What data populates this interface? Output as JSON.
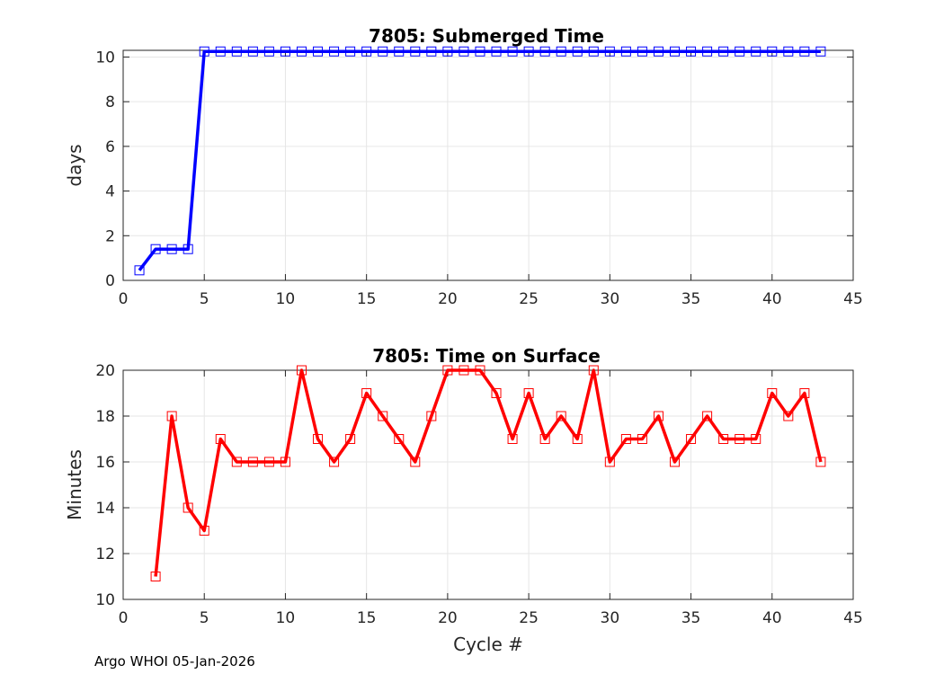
{
  "footer": {
    "text": "Argo WHOI 05-Jan-2026"
  },
  "chart_data": [
    {
      "type": "line",
      "title": "7805: Submerged Time",
      "xlabel": "",
      "ylabel": "days",
      "xlim": [
        0,
        45
      ],
      "ylim": [
        0,
        10.3
      ],
      "xticks": [
        0,
        5,
        10,
        15,
        20,
        25,
        30,
        35,
        40,
        45
      ],
      "yticks": [
        0,
        2,
        4,
        6,
        8,
        10
      ],
      "grid": true,
      "color": "#0000ff",
      "marker": "square",
      "x": [
        1,
        2,
        3,
        4,
        5,
        6,
        7,
        8,
        9,
        10,
        11,
        12,
        13,
        14,
        15,
        16,
        17,
        18,
        19,
        20,
        21,
        22,
        23,
        24,
        25,
        26,
        27,
        28,
        29,
        30,
        31,
        32,
        33,
        34,
        35,
        36,
        37,
        38,
        39,
        40,
        41,
        42,
        43
      ],
      "y": [
        0.45,
        1.4,
        1.4,
        1.4,
        10.25,
        10.25,
        10.25,
        10.25,
        10.25,
        10.25,
        10.25,
        10.25,
        10.25,
        10.25,
        10.25,
        10.25,
        10.25,
        10.25,
        10.25,
        10.25,
        10.25,
        10.25,
        10.25,
        10.25,
        10.25,
        10.25,
        10.25,
        10.25,
        10.25,
        10.25,
        10.25,
        10.25,
        10.25,
        10.25,
        10.25,
        10.25,
        10.25,
        10.25,
        10.25,
        10.25,
        10.25,
        10.25,
        10.25
      ]
    },
    {
      "type": "line",
      "title": "7805: Time on Surface",
      "xlabel": "Cycle #",
      "ylabel": "Minutes",
      "xlim": [
        0,
        45
      ],
      "ylim": [
        10,
        20
      ],
      "xticks": [
        0,
        5,
        10,
        15,
        20,
        25,
        30,
        35,
        40,
        45
      ],
      "yticks": [
        10,
        12,
        14,
        16,
        18,
        20
      ],
      "grid": true,
      "color": "#ff0000",
      "marker": "square",
      "x": [
        2,
        3,
        4,
        5,
        6,
        7,
        8,
        9,
        10,
        11,
        12,
        13,
        14,
        15,
        16,
        17,
        18,
        19,
        20,
        21,
        22,
        23,
        24,
        25,
        26,
        27,
        28,
        29,
        30,
        31,
        32,
        33,
        34,
        35,
        36,
        37,
        38,
        39,
        40,
        41,
        42,
        43
      ],
      "y": [
        11,
        18,
        14,
        13,
        17,
        16,
        16,
        16,
        16,
        20,
        17,
        16,
        17,
        19,
        18,
        17,
        16,
        18,
        20,
        20,
        20,
        19,
        17,
        19,
        17,
        18,
        17,
        20,
        16,
        17,
        17,
        18,
        16,
        17,
        18,
        17,
        17,
        17,
        19,
        18,
        19,
        16
      ]
    }
  ]
}
